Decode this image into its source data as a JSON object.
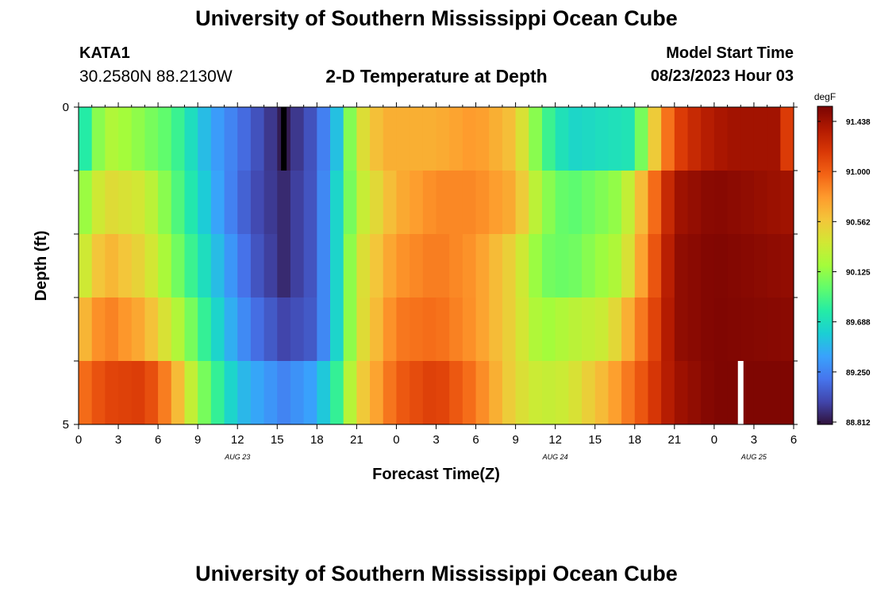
{
  "page": {
    "title": "University of Southern Mississippi Ocean Cube",
    "station_id": "KATA1",
    "coordinates": "30.2580N  88.2130W",
    "subtitle": "2-D Temperature at Depth",
    "model_start_label": "Model Start Time",
    "model_start_value": "08/23/2023 Hour 03",
    "footer_title": "University of Southern Mississippi Ocean Cube"
  },
  "chart_data": {
    "type": "heatmap",
    "title": "2-D Temperature at Depth",
    "xlabel": "Forecast Time(Z)",
    "ylabel": "Depth (ft)",
    "x_tick_labels": [
      "0",
      "3",
      "6",
      "9",
      "12",
      "15",
      "18",
      "21",
      "0",
      "3",
      "6",
      "9",
      "12",
      "15",
      "18",
      "21",
      "0",
      "3",
      "6"
    ],
    "x_range_hours": [
      0,
      54
    ],
    "date_labels": [
      {
        "label": "AUG 23",
        "hour": 12
      },
      {
        "label": "AUG 24",
        "hour": 36
      },
      {
        "label": "AUG 25",
        "hour": 51
      }
    ],
    "y_tick_labels": [
      "0",
      "5"
    ],
    "y_range": [
      0,
      5
    ],
    "depth_rows": 5,
    "colorbar": {
      "unit": "degF",
      "tick_labels": [
        "91.438",
        "91.000",
        "90.562",
        "90.125",
        "89.688",
        "89.250",
        "88.812"
      ],
      "range": [
        88.812,
        91.438
      ],
      "colors": [
        "#30123b",
        "#4145ab",
        "#4675ed",
        "#39a2fc",
        "#1bcfd4",
        "#24eca6",
        "#61fc6c",
        "#a4fc3b",
        "#d1e834",
        "#f3c63a",
        "#fe9b2d",
        "#f36315",
        "#d93806",
        "#b11901",
        "#7a0402"
      ]
    },
    "series_note": "Temperature (degF) per depth row (top to bottom) at each forecast hour 0..54",
    "times": [
      0,
      1,
      2,
      3,
      4,
      5,
      6,
      7,
      8,
      9,
      10,
      11,
      12,
      13,
      14,
      15,
      16,
      17,
      18,
      19,
      20,
      21,
      22,
      23,
      24,
      25,
      26,
      27,
      28,
      29,
      30,
      31,
      32,
      33,
      34,
      35,
      36,
      37,
      38,
      39,
      40,
      41,
      42,
      43,
      44,
      45,
      46,
      47,
      48,
      49,
      50,
      51,
      52,
      53,
      54
    ],
    "depth_series": [
      {
        "name": "row 1 (surface)",
        "anchors": [
          [
            0,
            89.6
          ],
          [
            2,
            90.2
          ],
          [
            4,
            90.1
          ],
          [
            7,
            89.9
          ],
          [
            10,
            89.4
          ],
          [
            13,
            89.1
          ],
          [
            15.5,
            88.85
          ],
          [
            18,
            89.1
          ],
          [
            19.5,
            89.5
          ],
          [
            21,
            90.3
          ],
          [
            23,
            90.6
          ],
          [
            25,
            90.6
          ],
          [
            27,
            90.6
          ],
          [
            30,
            90.7
          ],
          [
            33,
            90.5
          ],
          [
            35,
            89.9
          ],
          [
            37,
            89.6
          ],
          [
            42,
            89.7
          ],
          [
            43,
            90.3
          ],
          [
            45,
            91.0
          ],
          [
            47,
            91.2
          ],
          [
            49,
            91.3
          ],
          [
            53,
            91.3
          ],
          [
            54,
            90.8
          ]
        ]
      },
      {
        "name": "row 2",
        "anchors": [
          [
            0,
            90.0
          ],
          [
            2,
            90.4
          ],
          [
            5,
            90.3
          ],
          [
            8,
            89.8
          ],
          [
            11,
            89.3
          ],
          [
            13,
            89.05
          ],
          [
            15.5,
            88.9
          ],
          [
            18,
            89.1
          ],
          [
            19.5,
            89.6
          ],
          [
            21,
            90.2
          ],
          [
            24,
            90.6
          ],
          [
            27,
            90.75
          ],
          [
            30,
            90.75
          ],
          [
            33,
            90.6
          ],
          [
            35,
            90.1
          ],
          [
            37,
            89.9
          ],
          [
            41,
            90.1
          ],
          [
            43,
            90.7
          ],
          [
            45,
            91.3
          ],
          [
            48,
            91.4
          ],
          [
            54,
            91.3
          ]
        ]
      },
      {
        "name": "row 3",
        "anchors": [
          [
            0,
            90.2
          ],
          [
            2,
            90.6
          ],
          [
            5,
            90.4
          ],
          [
            8,
            89.9
          ],
          [
            11,
            89.4
          ],
          [
            13,
            89.1
          ],
          [
            15.5,
            88.9
          ],
          [
            18,
            89.1
          ],
          [
            19.5,
            89.6
          ],
          [
            21,
            90.3
          ],
          [
            24,
            90.7
          ],
          [
            27,
            90.8
          ],
          [
            30,
            90.7
          ],
          [
            33,
            90.4
          ],
          [
            35,
            90.0
          ],
          [
            37,
            89.95
          ],
          [
            41,
            90.2
          ],
          [
            43,
            90.8
          ],
          [
            45,
            91.35
          ],
          [
            48,
            91.42
          ],
          [
            54,
            91.35
          ]
        ]
      },
      {
        "name": "row 4",
        "anchors": [
          [
            0,
            90.5
          ],
          [
            2,
            90.8
          ],
          [
            5,
            90.6
          ],
          [
            8,
            90.1
          ],
          [
            11,
            89.5
          ],
          [
            13,
            89.2
          ],
          [
            15.5,
            89.0
          ],
          [
            18,
            89.1
          ],
          [
            19.5,
            89.6
          ],
          [
            21,
            90.3
          ],
          [
            24,
            90.8
          ],
          [
            27,
            90.85
          ],
          [
            30,
            90.7
          ],
          [
            33,
            90.4
          ],
          [
            35,
            90.1
          ],
          [
            37,
            90.2
          ],
          [
            40,
            90.3
          ],
          [
            43,
            90.9
          ],
          [
            45,
            91.35
          ],
          [
            48,
            91.42
          ],
          [
            54,
            91.38
          ]
        ]
      },
      {
        "name": "row 5 (bottom)",
        "anchors": [
          [
            0,
            90.8
          ],
          [
            2,
            91.0
          ],
          [
            5,
            91.05
          ],
          [
            7,
            90.7
          ],
          [
            9,
            90.1
          ],
          [
            12,
            89.5
          ],
          [
            15.5,
            89.25
          ],
          [
            18,
            89.4
          ],
          [
            19.5,
            89.8
          ],
          [
            21,
            90.4
          ],
          [
            24,
            90.9
          ],
          [
            27,
            91.05
          ],
          [
            30,
            90.8
          ],
          [
            33,
            90.4
          ],
          [
            35,
            90.25
          ],
          [
            37,
            90.3
          ],
          [
            40,
            90.6
          ],
          [
            43,
            91.0
          ],
          [
            45,
            91.3
          ],
          [
            48,
            91.42
          ],
          [
            54,
            91.42
          ]
        ]
      }
    ],
    "markers": [
      {
        "kind": "black",
        "hour": 15.5,
        "row": 0
      },
      {
        "kind": "white",
        "hour": 50,
        "row": 4
      }
    ]
  }
}
